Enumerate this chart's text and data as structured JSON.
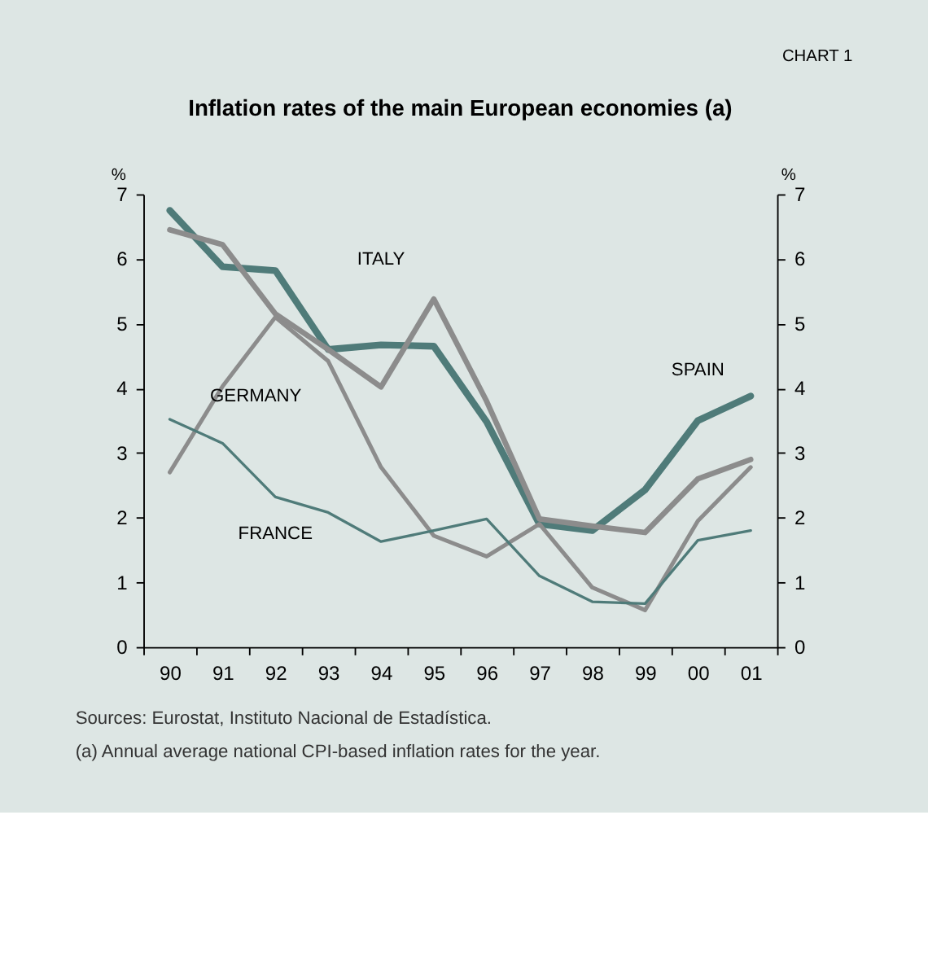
{
  "chart_data": {
    "type": "line",
    "title": "Inflation rates of the main European economies (a)",
    "ylabel": "%",
    "y2label": "%",
    "categories": [
      "90",
      "91",
      "92",
      "93",
      "94",
      "95",
      "96",
      "97",
      "98",
      "99",
      "00",
      "01"
    ],
    "series": [
      {
        "name": "SPAIN",
        "color": "#4f7b79",
        "values": [
          6.75,
          5.88,
          5.82,
          4.6,
          4.67,
          4.65,
          3.48,
          1.9,
          1.8,
          2.43,
          3.5,
          3.88
        ]
      },
      {
        "name": "ITALY",
        "color": "#8c8c8c",
        "values": [
          6.45,
          6.22,
          5.15,
          4.6,
          4.02,
          5.38,
          3.8,
          1.98,
          1.87,
          1.77,
          2.6,
          2.9
        ]
      },
      {
        "name": "GERMANY",
        "color": "#8c8c8c",
        "values": [
          2.7,
          4.03,
          5.1,
          4.42,
          2.78,
          1.72,
          1.4,
          1.9,
          0.92,
          0.57,
          1.95,
          2.78
        ]
      },
      {
        "name": "FRANCE",
        "color": "#4f7b79",
        "values": [
          3.52,
          3.15,
          2.32,
          2.08,
          1.63,
          1.8,
          1.98,
          1.1,
          0.7,
          0.67,
          1.65,
          1.8
        ]
      }
    ],
    "ylim": [
      0,
      7
    ],
    "yticks": [
      0,
      1,
      2,
      3,
      4,
      5,
      6,
      7
    ],
    "y2lim": [
      0,
      7
    ],
    "y2ticks": [
      0,
      1,
      2,
      3,
      4,
      5,
      6,
      7
    ],
    "grid": false,
    "legend": false,
    "marker": "none",
    "line_style": "solid",
    "annotations": [
      "CHART 1",
      "Sources: Eurostat, Instituto Nacional de Estadística.",
      "(a)   Annual average national CPI-based inflation rates for the year."
    ]
  }
}
